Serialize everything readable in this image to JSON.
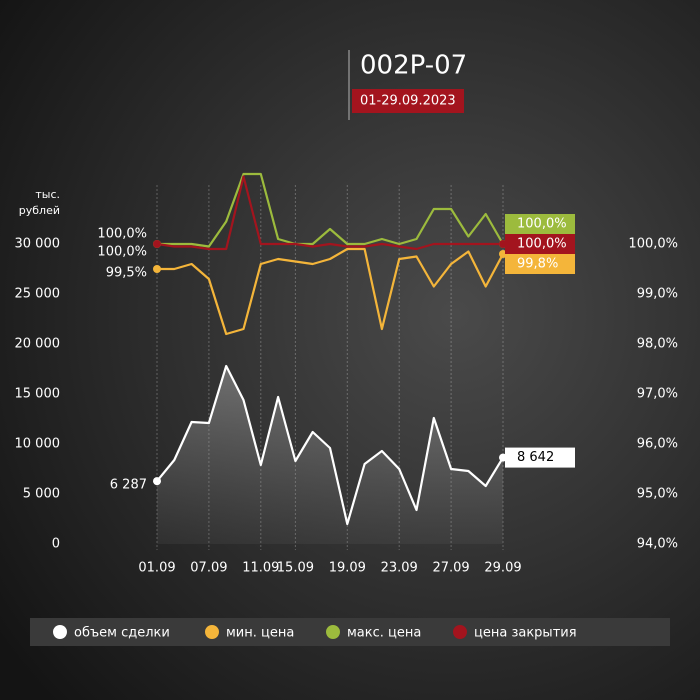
{
  "chart_data": {
    "type": "line",
    "title": "002P-07",
    "subtitle": "01-29.09.2023",
    "ylabel_lines": [
      "тыс.",
      "рублей"
    ],
    "categories": [
      "01.09",
      null,
      null,
      "07.09",
      null,
      null,
      "11.09",
      null,
      "15.09",
      null,
      null,
      "19.09",
      null,
      null,
      "23.09",
      null,
      null,
      "27.09",
      null,
      null,
      "29.09"
    ],
    "ylim": [
      0,
      30000
    ],
    "yticks": [
      0,
      {
        "value": 5000,
        "label": "5 000"
      },
      {
        "value": 10000,
        "label": "10 000"
      },
      {
        "value": 15000,
        "label": "15 000"
      },
      {
        "value": 20000,
        "label": "20 000"
      },
      {
        "value": 25000,
        "label": "25 000"
      },
      {
        "value": 30000,
        "label": "30 000"
      }
    ],
    "y2lim": [
      94,
      100
    ],
    "y2ticks": [
      {
        "value": 94,
        "label": "94,0%"
      },
      {
        "value": 95,
        "label": "95,0%"
      },
      {
        "value": 96,
        "label": "96,0%"
      },
      {
        "value": 97,
        "label": "97,0%"
      },
      {
        "value": 98,
        "label": "98,0%"
      },
      {
        "value": 99,
        "label": "99,0%"
      },
      {
        "value": 100,
        "label": "100,0%"
      }
    ],
    "series": [
      {
        "name": "объем сделки",
        "color": "#ffffff",
        "area": true,
        "values": [
          6287,
          8400,
          12200,
          12100,
          17800,
          14400,
          7900,
          14700,
          8300,
          11200,
          9600,
          2000,
          8000,
          9300,
          7500,
          3400,
          12600,
          7500,
          7300,
          5800,
          8642
        ],
        "value_labels": [
          "6 287",
          null,
          null,
          null,
          null,
          null,
          null,
          null,
          null,
          null,
          null,
          null,
          null,
          null,
          null,
          null,
          null,
          null,
          null,
          null,
          "8 642"
        ]
      },
      {
        "name": "мин. цена",
        "color": "#f4b53a",
        "axis": "y2",
        "values": [
          99.5,
          99.5,
          99.6,
          99.3,
          98.2,
          98.3,
          99.6,
          99.7,
          99.65,
          99.6,
          99.7,
          99.9,
          99.9,
          98.3,
          99.7,
          99.75,
          99.15,
          99.6,
          99.85,
          99.15,
          99.8
        ],
        "value_labels": [
          "99,5%",
          null,
          null,
          null,
          null,
          null,
          null,
          null,
          null,
          null,
          null,
          null,
          null,
          null,
          null,
          null,
          null,
          null,
          null,
          null,
          "99,8%"
        ]
      },
      {
        "name": "макс. цена",
        "color": "#9cbb3d",
        "axis": "y2",
        "values": [
          100.0,
          100.0,
          100.0,
          99.95,
          100.45,
          101.4,
          101.4,
          100.1,
          100.0,
          100.0,
          100.3,
          100.0,
          100.0,
          100.1,
          100.0,
          100.1,
          100.7,
          100.7,
          100.15,
          100.6,
          100.0
        ],
        "value_labels": [
          "100,0%",
          null,
          null,
          null,
          null,
          null,
          null,
          null,
          null,
          null,
          null,
          null,
          null,
          null,
          null,
          null,
          null,
          null,
          null,
          null,
          "100,0%"
        ]
      },
      {
        "name": "цена закрытия",
        "color": "#a3141e",
        "axis": "y2",
        "values": [
          100.0,
          99.95,
          99.95,
          99.9,
          99.9,
          101.35,
          100.0,
          100.0,
          100.0,
          99.95,
          100.0,
          99.95,
          99.95,
          100.0,
          99.95,
          99.9,
          100.0,
          100.0,
          100.0,
          100.0,
          100.0
        ],
        "value_labels": [
          "100,0%",
          null,
          null,
          null,
          null,
          null,
          null,
          null,
          null,
          null,
          null,
          null,
          null,
          null,
          null,
          null,
          null,
          null,
          null,
          null,
          "100,0%"
        ]
      }
    ]
  }
}
